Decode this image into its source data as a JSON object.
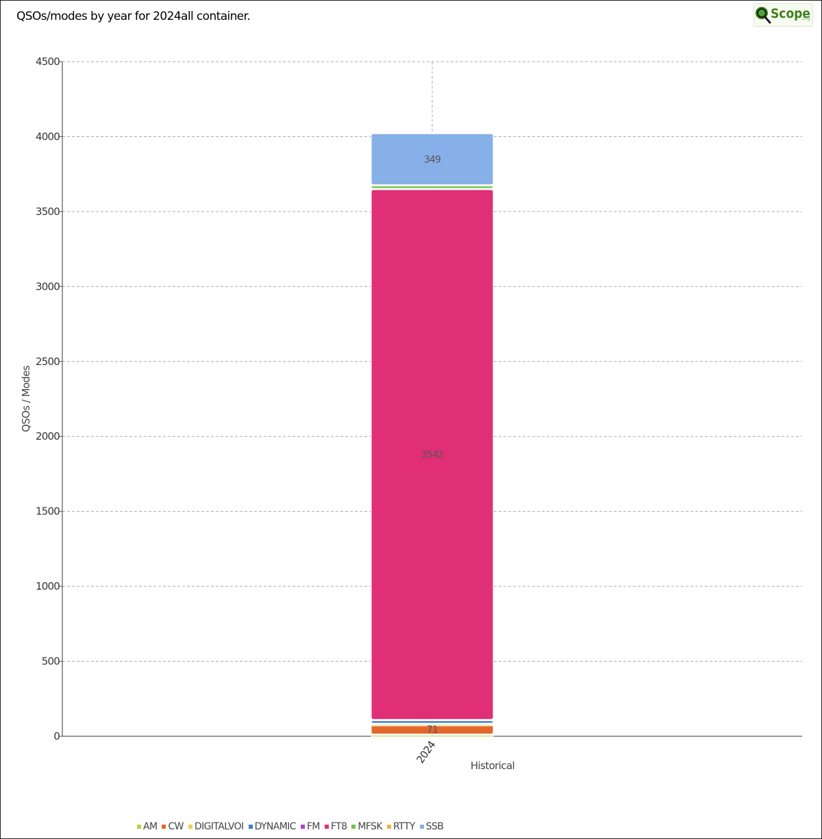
{
  "header": {
    "title": "QSOs/modes by year for 2024all container.",
    "logo_text": "Scope",
    "logo_sub": ".org"
  },
  "chart_data": {
    "type": "bar",
    "stacked": true,
    "categories": [
      "2024"
    ],
    "xlabel": "Historical",
    "ylabel": "QSOs / Modes",
    "ylim": [
      0,
      4500
    ],
    "yticks": [
      0,
      500,
      1000,
      1500,
      2000,
      2500,
      3000,
      3500,
      4000,
      4500
    ],
    "grid": true,
    "legend_position": "bottom-left",
    "series": [
      {
        "name": "AM",
        "color": "#b7d33a",
        "values": [
          10
        ],
        "label": ""
      },
      {
        "name": "CW",
        "color": "#e3672b",
        "values": [
          71
        ],
        "label": "71"
      },
      {
        "name": "DIGITALVOI",
        "color": "#e8d24a",
        "values": [
          2
        ],
        "label": ""
      },
      {
        "name": "DYNAMIC",
        "color": "#3d7fd0",
        "values": [
          25
        ],
        "label": ""
      },
      {
        "name": "FM",
        "color": "#b33fd0",
        "values": [
          0
        ],
        "label": ""
      },
      {
        "name": "FT8",
        "color": "#e02f76",
        "values": [
          3542
        ],
        "label": "3542"
      },
      {
        "name": "MFSK",
        "color": "#6cc542",
        "values": [
          25
        ],
        "label": ""
      },
      {
        "name": "RTTY",
        "color": "#f2b240",
        "values": [
          0
        ],
        "label": ""
      },
      {
        "name": "SSB",
        "color": "#88b0e8",
        "values": [
          349
        ],
        "label": "349"
      }
    ]
  }
}
